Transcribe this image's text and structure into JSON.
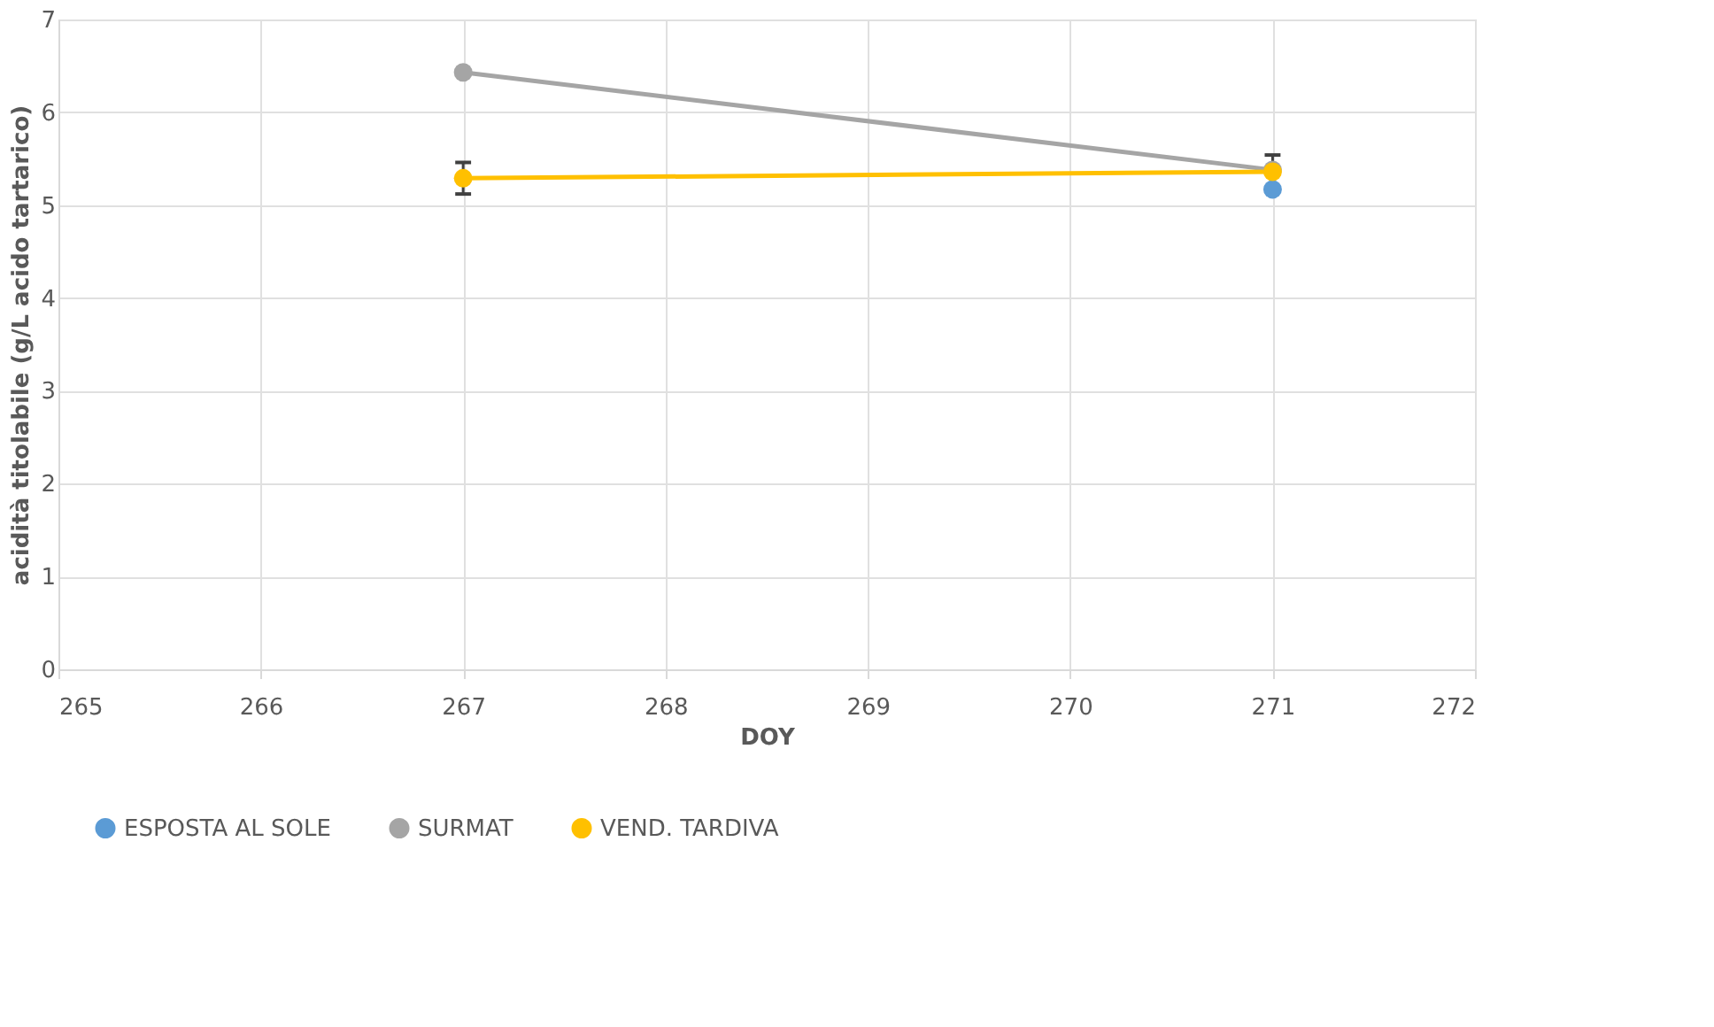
{
  "chart_data": {
    "type": "line",
    "xlabel": "DOY",
    "ylabel": "acidità titolabile (g/L acido tartarico)",
    "x": [
      267,
      271
    ],
    "series": [
      {
        "name": "ESPOSTA AL SOLE",
        "color": "#5b9bd5",
        "values": [
          null,
          5.17
        ]
      },
      {
        "name": "SURMAT",
        "color": "#a5a5a5",
        "values": [
          6.43,
          5.38
        ]
      },
      {
        "name": "VEND. TARDIVA",
        "color": "#ffc000",
        "values": [
          5.29,
          5.36
        ],
        "errors": [
          0.17,
          0.18
        ]
      }
    ],
    "xlim": [
      265,
      272
    ],
    "xticks": [
      265,
      266,
      267,
      268,
      269,
      270,
      271,
      272
    ],
    "ylim": [
      0,
      7
    ],
    "yticks": [
      0,
      1,
      2,
      3,
      4,
      5,
      6,
      7
    ],
    "grid": true,
    "legend": "bottom",
    "marker": "circle",
    "line_style": "solid"
  }
}
